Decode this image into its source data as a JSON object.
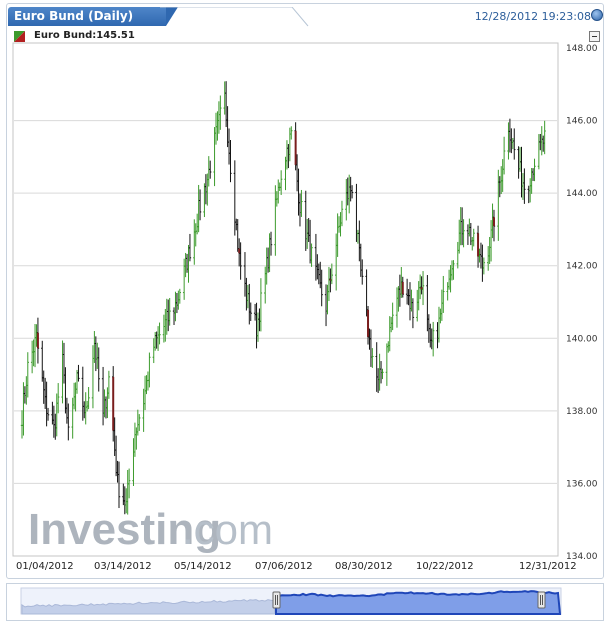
{
  "header": {
    "title": "Euro Bund (Daily)",
    "timestamp": "12/28/2012 19:23:08"
  },
  "legend": {
    "label": "Euro Bund:145.51"
  },
  "watermark": {
    "brand": "Investing",
    "suffix": ".com"
  },
  "colors": {
    "up": "#3c9a2c",
    "down": "#111111",
    "accent": "#2f68b0",
    "grid": "#d9d9d9",
    "navigator_fill": "#7f9ee8",
    "navigator_line": "#1f46b8"
  },
  "chart_data": {
    "type": "ohlc",
    "instrument": "Euro Bund",
    "last": 145.51,
    "ylim": [
      134,
      148
    ],
    "yticks": [
      "134.00",
      "136.00",
      "138.00",
      "140.00",
      "142.00",
      "144.00",
      "146.00",
      "148.00"
    ],
    "x_tick_labels": [
      "01/04/2012",
      "03/14/2012",
      "05/14/2012",
      "07/06/2012",
      "08/30/2012",
      "10/22/2012",
      "12/31/2012"
    ],
    "grid": true,
    "y_axis_side": "right",
    "close_path": [
      [
        "2012-01-02",
        137.9
      ],
      [
        "2012-01-06",
        139.2
      ],
      [
        "2012-01-12",
        140.0
      ],
      [
        "2012-01-18",
        138.2
      ],
      [
        "2012-01-24",
        137.5
      ],
      [
        "2012-01-30",
        139.3
      ],
      [
        "2012-02-03",
        137.3
      ],
      [
        "2012-02-09",
        138.8
      ],
      [
        "2012-02-15",
        137.9
      ],
      [
        "2012-02-21",
        139.9
      ],
      [
        "2012-02-27",
        137.8
      ],
      [
        "2012-03-02",
        138.9
      ],
      [
        "2012-03-08",
        136.0
      ],
      [
        "2012-03-14",
        135.4
      ],
      [
        "2012-03-20",
        137.4
      ],
      [
        "2012-03-26",
        138.3
      ],
      [
        "2012-04-01",
        139.7
      ],
      [
        "2012-04-10",
        140.4
      ],
      [
        "2012-04-18",
        141.0
      ],
      [
        "2012-04-26",
        142.3
      ],
      [
        "2012-05-03",
        143.5
      ],
      [
        "2012-05-09",
        144.4
      ],
      [
        "2012-05-15",
        145.6
      ],
      [
        "2012-05-21",
        146.6
      ],
      [
        "2012-05-25",
        144.8
      ],
      [
        "2012-05-31",
        142.2
      ],
      [
        "2012-06-06",
        141.0
      ],
      [
        "2012-06-12",
        140.3
      ],
      [
        "2012-06-18",
        141.7
      ],
      [
        "2012-06-24",
        143.3
      ],
      [
        "2012-06-30",
        144.8
      ],
      [
        "2012-07-06",
        145.6
      ],
      [
        "2012-07-12",
        143.7
      ],
      [
        "2012-07-18",
        142.6
      ],
      [
        "2012-07-24",
        141.6
      ],
      [
        "2012-07-30",
        140.9
      ],
      [
        "2012-08-05",
        142.4
      ],
      [
        "2012-08-11",
        143.7
      ],
      [
        "2012-08-17",
        144.2
      ],
      [
        "2012-08-23",
        141.8
      ],
      [
        "2012-08-29",
        139.9
      ],
      [
        "2012-09-04",
        138.7
      ],
      [
        "2012-09-10",
        139.8
      ],
      [
        "2012-09-16",
        141.0
      ],
      [
        "2012-09-22",
        141.6
      ],
      [
        "2012-09-28",
        140.7
      ],
      [
        "2012-10-04",
        141.6
      ],
      [
        "2012-10-10",
        139.7
      ],
      [
        "2012-10-16",
        140.4
      ],
      [
        "2012-10-22",
        141.7
      ],
      [
        "2012-10-28",
        142.6
      ],
      [
        "2012-11-03",
        143.3
      ],
      [
        "2012-11-09",
        142.6
      ],
      [
        "2012-11-15",
        142.0
      ],
      [
        "2012-11-21",
        142.8
      ],
      [
        "2012-11-27",
        144.3
      ],
      [
        "2012-12-03",
        145.9
      ],
      [
        "2012-12-09",
        144.8
      ],
      [
        "2012-12-15",
        144.1
      ],
      [
        "2012-12-21",
        144.9
      ],
      [
        "2012-12-28",
        145.5
      ]
    ]
  }
}
